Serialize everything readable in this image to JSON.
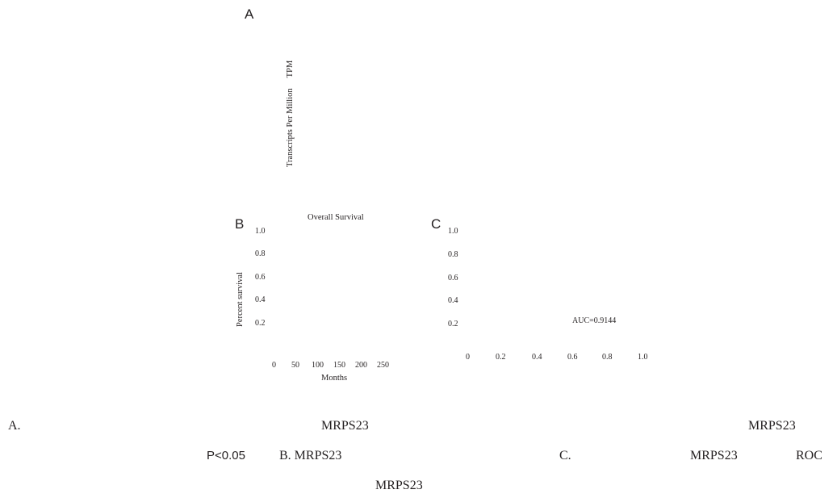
{
  "figure": {
    "panel_a": {
      "letter": "A",
      "ylabel": "Transcripts Per Million",
      "ylabel_unit": "TPM"
    },
    "panel_b": {
      "letter": "B",
      "title": "Overall Survival",
      "ylabel": "Percent survival",
      "xlabel": "Months",
      "y_ticks": [
        "1.0",
        "0.8",
        "0.6",
        "0.4",
        "0.2"
      ],
      "x_ticks": [
        "0",
        "50",
        "100",
        "150",
        "200",
        "250"
      ]
    },
    "panel_c": {
      "letter": "C",
      "annotation": "AUC=0.9144",
      "y_ticks": [
        "1.0",
        "0.8",
        "0.6",
        "0.4",
        "0.2"
      ],
      "x_ticks": [
        "0",
        "0.2",
        "0.4",
        "0.6",
        "0.8",
        "1.0"
      ]
    }
  },
  "caption": {
    "line1": {
      "a": "A.",
      "gene1": "MRPS23",
      "gene2": "MRPS23"
    },
    "line2": {
      "p": "P<0.05",
      "b": "B. MRPS23",
      "c": "C.",
      "gene": "MRPS23",
      "roc": "ROC"
    },
    "line3": {
      "gene": "MRPS23"
    }
  }
}
